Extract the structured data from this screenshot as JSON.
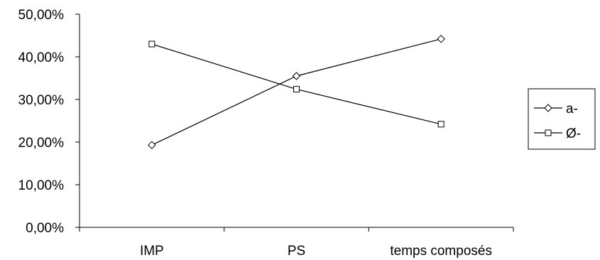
{
  "chart_data": {
    "type": "line",
    "title": "",
    "xlabel": "",
    "ylabel": "",
    "categories": [
      "IMP",
      "PS",
      "temps composés"
    ],
    "ylim": [
      0,
      0.5
    ],
    "yticks": [
      0,
      0.1,
      0.2,
      0.3,
      0.4,
      0.5
    ],
    "ytick_labels": [
      "0,00%",
      "10,00%",
      "20,00%",
      "30,00%",
      "40,00%",
      "50,00%"
    ],
    "grid": false,
    "legend_position": "right",
    "series": [
      {
        "name": "a-",
        "marker": "diamond",
        "values": [
          0.193,
          0.355,
          0.442
        ]
      },
      {
        "name": "Ø-",
        "marker": "square",
        "values": [
          0.43,
          0.324,
          0.242
        ]
      }
    ]
  }
}
